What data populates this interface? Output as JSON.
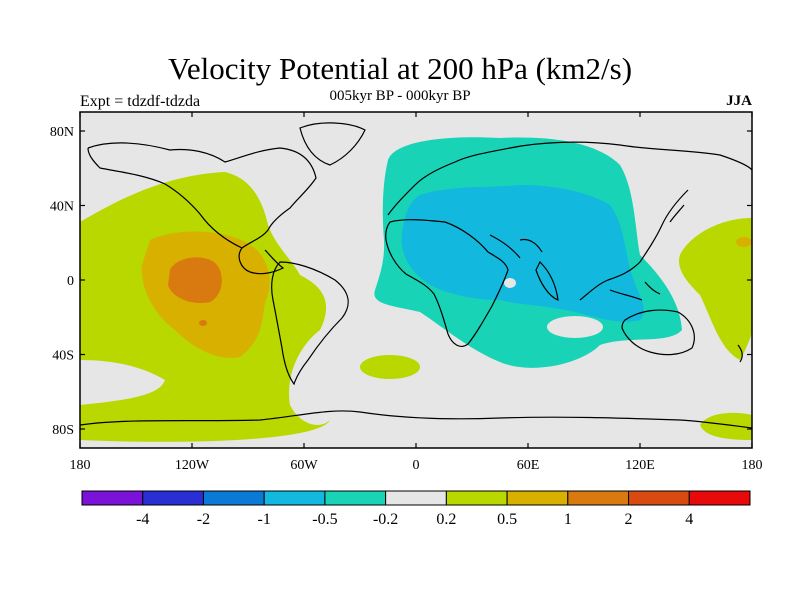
{
  "title": "Velocity Potential at 200 hPa (km2/s)",
  "subtitle": "005kyr BP - 000kyr BP",
  "left_label": "Expt = tdzdf-tdzda",
  "right_label": "JJA",
  "map": {
    "lat_ticks": [
      "80N",
      "40N",
      "0",
      "40S",
      "80S"
    ],
    "lon_ticks": [
      "180",
      "120W",
      "60W",
      "0",
      "60E",
      "120E",
      "180"
    ],
    "background_color": "#e6e6e6"
  },
  "colorbar": {
    "colors": [
      "#7b12d8",
      "#2a2fd4",
      "#0a7ad6",
      "#12b8de",
      "#18d3b6",
      "#e6e6e6",
      "#b8d800",
      "#d8b000",
      "#d87a10",
      "#d84a10",
      "#e80a0a"
    ],
    "labels": [
      "-4",
      "-2",
      "-1",
      "-0.5",
      "-0.2",
      "0.2",
      "0.5",
      "1",
      "2",
      "4"
    ]
  }
}
